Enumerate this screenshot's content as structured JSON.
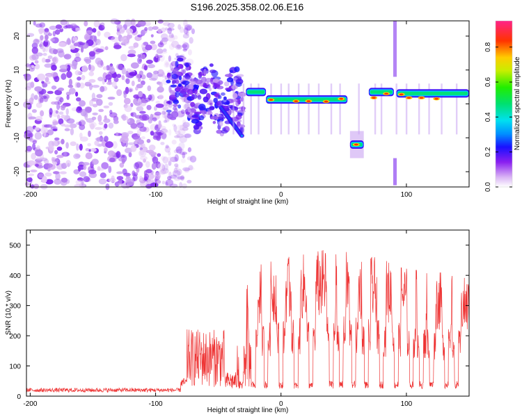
{
  "title": "S196.2025.358.02.06.E16",
  "colors": {
    "snr_line": "#ee3333",
    "frame": "#000000"
  },
  "chart_data": [
    {
      "type": "heatmap",
      "name": "spectrogram",
      "xlabel": "Height of straight line (km)",
      "ylabel": "Frequency (Hz)",
      "xlim": [
        -203,
        150
      ],
      "ylim": [
        -24.5,
        24.5
      ],
      "xticks": [
        -200,
        -100,
        0,
        100
      ],
      "yticks": [
        -20,
        -10,
        0,
        10,
        20
      ],
      "xtick_labels": [
        "-200",
        "-100",
        "0",
        "100"
      ],
      "ytick_labels": [
        "-20",
        "-10",
        "0",
        "10",
        "20"
      ],
      "colorbar": {
        "label": "Normalized spectral amplitude",
        "range": [
          0.0,
          0.95
        ],
        "ticks": [
          0.0,
          0.2,
          0.4,
          0.6,
          0.8
        ],
        "tick_labels": [
          "0.0",
          "0.2",
          "0.4",
          "0.6",
          "0.8"
        ]
      },
      "features": {
        "noise_region_x": [
          -203,
          -80
        ],
        "transition_x": [
          -90,
          -30
        ],
        "main_band_freq": 1.5,
        "main_band_x": [
          -30,
          150
        ],
        "offset_segment": {
          "x": [
            55,
            66
          ],
          "freq": -12
        },
        "data_gaps_x": [
          [
            53,
            55
          ],
          [
            66,
            70
          ],
          [
            90,
            92
          ]
        ]
      }
    },
    {
      "type": "line",
      "name": "snr",
      "xlabel": "Height of straight line (km)",
      "ylabel": "SNR (10 * v/v)",
      "xlim": [
        -203,
        150
      ],
      "ylim": [
        0,
        550
      ],
      "xticks": [
        -200,
        -100,
        0,
        100
      ],
      "yticks": [
        0,
        100,
        200,
        300,
        400,
        500
      ],
      "xtick_labels": [
        "-200",
        "-100",
        "0",
        "100"
      ],
      "ytick_labels": [
        "0",
        "100",
        "200",
        "300",
        "400",
        "500"
      ],
      "baseline_level": 20,
      "burst_region_x": [
        -75,
        -45
      ],
      "burst_level": 120,
      "rise_start_x": -35,
      "plateau_peak": 470,
      "peak_x": 40,
      "dip_positions_x": [
        -32,
        -22,
        -12,
        0,
        12,
        24,
        40,
        48,
        58,
        68,
        80,
        92,
        104,
        112,
        120,
        132,
        140
      ]
    }
  ]
}
